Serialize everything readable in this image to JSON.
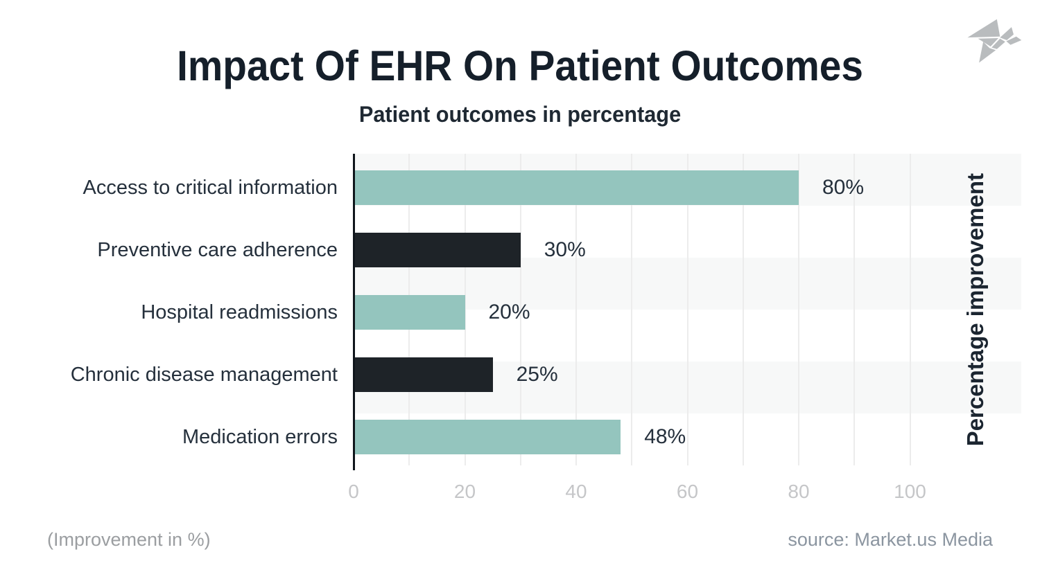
{
  "header": {
    "title": "Impact Of EHR On Patient Outcomes",
    "subtitle": "Patient outcomes in percentage"
  },
  "logo": {
    "icon": "origami-bird-logo",
    "color": "#b9bcbe"
  },
  "chart_data": {
    "type": "bar",
    "orientation": "horizontal",
    "title": "Impact Of EHR On Patient Outcomes",
    "subtitle": "Patient outcomes in percentage",
    "categories": [
      "Access to critical information",
      "Preventive care adherence",
      "Hospital readmissions",
      "Chronic disease management",
      "Medication errors"
    ],
    "values": [
      80,
      30,
      20,
      25,
      48
    ],
    "value_labels": [
      "80%",
      "30%",
      "20%",
      "25%",
      "48%"
    ],
    "bar_colors": [
      "#94c5be",
      "#1e2328",
      "#94c5be",
      "#1e2328",
      "#94c5be"
    ],
    "x_ticks": [
      0,
      20,
      40,
      60,
      80,
      100
    ],
    "xlim": [
      0,
      120
    ],
    "gridline_step": 10,
    "grid": "vertical",
    "legend": "none",
    "right_axis_label": "Percentage improvement",
    "colors": {
      "teal": "#94c5be",
      "dark": "#1e2328",
      "gridline": "#ececec",
      "stripe": "#f7f8f8",
      "axis": "#10161c",
      "tick_text": "#c5c6c8"
    }
  },
  "footer": {
    "left_note": "(Improvement in %)",
    "source": "source: Market.us Media"
  }
}
